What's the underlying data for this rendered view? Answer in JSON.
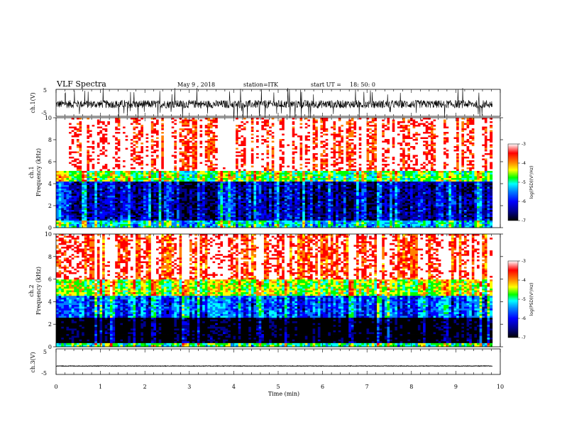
{
  "header": {
    "title": "VLF Spectra",
    "date": "May 9 , 2018",
    "station": "station=ITK",
    "start_label": "start UT =",
    "start_time": "18: 50: 0"
  },
  "colors": {
    "spectrogram_scale": [
      "#000000",
      "#00008b",
      "#0000ff",
      "#0080ff",
      "#00ffff",
      "#00ff00",
      "#ffff00",
      "#ff8000",
      "#ff0000",
      "#ffffff"
    ]
  },
  "chart_data": [
    {
      "type": "line",
      "panel": "ch1-waveform",
      "ylabel": "ch.1(V)",
      "yticks": [
        "5",
        "-5"
      ],
      "ylim": [
        -5,
        5
      ],
      "xlim": [
        0,
        10
      ],
      "x_coverage": [
        0,
        9.82
      ],
      "description_values": {
        "baseline": -0.5,
        "typical_amplitude": 1.5,
        "peak_amplitude": 5
      }
    },
    {
      "type": "heatmap",
      "panel": "ch1-spectrogram",
      "ylabel": "ch.1\nFrequency (kHz)",
      "ylabel_line1": "ch.1",
      "ylabel_line2": "Frequency (kHz)",
      "yticks": [
        "10",
        "8",
        "6",
        "4",
        "2",
        "0"
      ],
      "ylim": [
        0,
        10
      ],
      "xlim": [
        0,
        10
      ],
      "x_coverage": [
        0,
        9.82
      ],
      "bands_khz": [
        {
          "from": 0,
          "to": 0.6,
          "level": -5.3
        },
        {
          "from": 0.6,
          "to": 4.2,
          "level": -6.3
        },
        {
          "from": 4.2,
          "to": 5.2,
          "level": -4.8
        },
        {
          "from": 5.2,
          "to": 10,
          "level": -3.3
        }
      ],
      "colorbar": {
        "label": "log(PSD)(V²/Hz)",
        "ticks": [
          "-3",
          "-4",
          "-5",
          "-6",
          "-7"
        ],
        "range": [
          -7,
          -3
        ]
      }
    },
    {
      "type": "heatmap",
      "panel": "ch2-spectrogram",
      "ylabel_line1": "ch.2",
      "ylabel_line2": "Frequency (kHz)",
      "yticks": [
        "10",
        "8",
        "6",
        "4",
        "2",
        "0"
      ],
      "ylim": [
        0,
        10
      ],
      "xlim": [
        0,
        10
      ],
      "x_coverage": [
        0,
        9.82
      ],
      "bands_khz": [
        {
          "from": 0,
          "to": 0.4,
          "level": -5.0
        },
        {
          "from": 0.4,
          "to": 2.6,
          "level": -7.0
        },
        {
          "from": 2.6,
          "to": 4.5,
          "level": -5.8
        },
        {
          "from": 4.5,
          "to": 6.0,
          "level": -4.6
        },
        {
          "from": 6.0,
          "to": 10,
          "level": -3.5
        }
      ],
      "colorbar": {
        "label": "log(PSD)(V²/Hz)",
        "ticks": [
          "-3",
          "-4",
          "-5",
          "-6",
          "-7"
        ],
        "range": [
          -7,
          -3
        ]
      }
    },
    {
      "type": "line",
      "panel": "ch3-waveform",
      "ylabel": "ch.3(V)",
      "yticks": [
        "5",
        "-5"
      ],
      "ylim": [
        -5,
        5
      ],
      "xlim": [
        0,
        10
      ],
      "x_coverage": [
        0,
        9.82
      ],
      "description_values": {
        "baseline": -1.7,
        "typical_amplitude": 0.1
      }
    }
  ],
  "xaxis": {
    "label": "Time (min)",
    "ticks": [
      "0",
      "1",
      "2",
      "3",
      "4",
      "5",
      "6",
      "7",
      "8",
      "9",
      "10"
    ],
    "range": [
      0,
      10
    ]
  }
}
